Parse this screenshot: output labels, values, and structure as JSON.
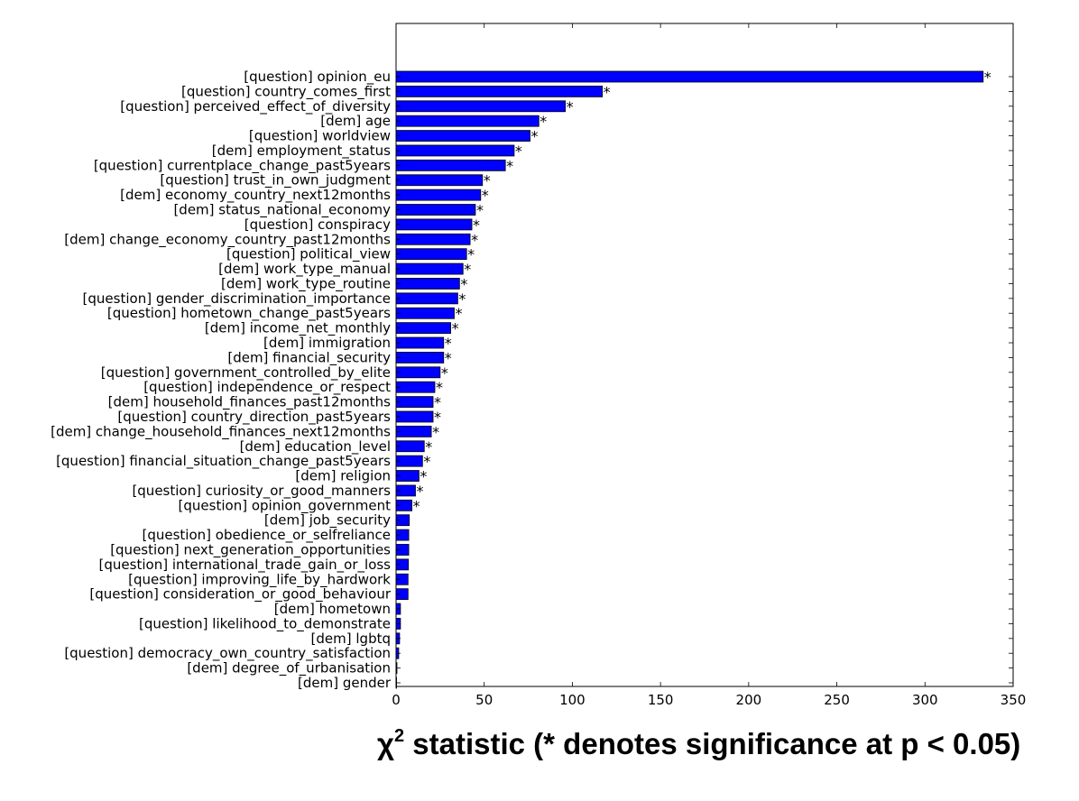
{
  "chart_data": {
    "type": "bar",
    "orientation": "horizontal",
    "categories": [
      "[question] opinion_eu",
      "[question] country_comes_first",
      "[question] perceived_effect_of_diversity",
      "[dem] age",
      "[question] worldview",
      "[dem] employment_status",
      "[question] currentplace_change_past5years",
      "[question] trust_in_own_judgment",
      "[dem] economy_country_next12months",
      "[dem] status_national_economy",
      "[question] conspiracy",
      "[dem] change_economy_country_past12months",
      "[question] political_view",
      "[dem] work_type_manual",
      "[dem] work_type_routine",
      "[question] gender_discrimination_importance",
      "[question] hometown_change_past5years",
      "[dem] income_net_monthly",
      "[dem] immigration",
      "[dem] financial_security",
      "[question] government_controlled_by_elite",
      "[question] independence_or_respect",
      "[dem] household_finances_past12months",
      "[question] country_direction_past5years",
      "[dem] change_household_finances_next12months",
      "[dem] education_level",
      "[question] financial_situation_change_past5years",
      "[dem] religion",
      "[question] curiosity_or_good_manners",
      "[question] opinion_government",
      "[dem] job_security",
      "[question] obedience_or_selfreliance",
      "[question] next_generation_opportunities",
      "[question] international_trade_gain_or_loss",
      "[question] improving_life_by_hardwork",
      "[question] consideration_or_good_behaviour",
      "[dem] hometown",
      "[question] likelihood_to_demonstrate",
      "[dem] lgbtq",
      "[question] democracy_own_country_satisfaction",
      "[dem] degree_of_urbanisation",
      "[dem] gender"
    ],
    "values": [
      333,
      117,
      96,
      81,
      76,
      67,
      62,
      49,
      48,
      45,
      43,
      42,
      40,
      38,
      36,
      35,
      33,
      31,
      27,
      27,
      25,
      22,
      21,
      21,
      20,
      16,
      15,
      13,
      11,
      9,
      7.5,
      7.2,
      7.2,
      7.0,
      6.8,
      6.8,
      2.5,
      2.5,
      2.0,
      1.5,
      0.5,
      0.3
    ],
    "significant": [
      true,
      true,
      true,
      true,
      true,
      true,
      true,
      true,
      true,
      true,
      true,
      true,
      true,
      true,
      true,
      true,
      true,
      true,
      true,
      true,
      true,
      true,
      true,
      true,
      true,
      true,
      true,
      true,
      true,
      true,
      false,
      false,
      false,
      false,
      false,
      false,
      false,
      false,
      false,
      false,
      false,
      false
    ],
    "significance_marker": "*",
    "xlim": [
      0,
      350
    ],
    "xticks": [
      0,
      50,
      100,
      150,
      200,
      250,
      300,
      350
    ],
    "xlabel_main": "χ",
    "xlabel_sup": "2",
    "xlabel_rest": " statistic (* denotes significance at p < 0.05)",
    "bar_color": "#0000ff",
    "grid": false
  }
}
